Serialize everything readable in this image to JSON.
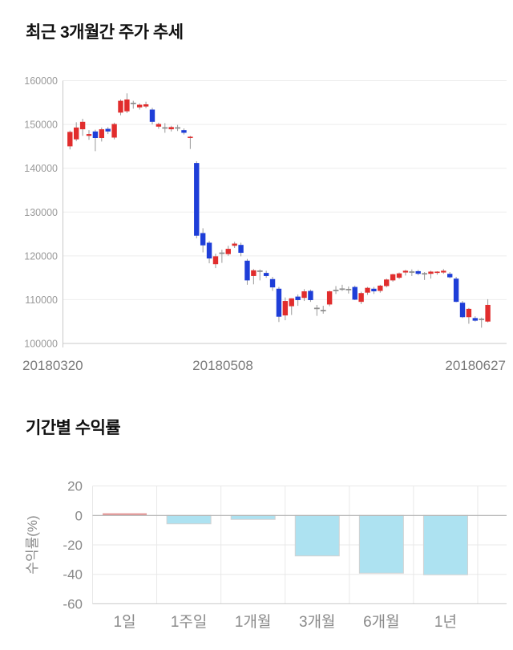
{
  "page": {
    "background": "#ffffff"
  },
  "sections": {
    "price_trend": {
      "title": "최근 3개월간 주가 추세"
    },
    "period_returns": {
      "title": "기간별 수익률"
    }
  },
  "chart_data": [
    {
      "type": "candlestick",
      "title": "최근 3개월간 주가 추세",
      "ylim": [
        100000,
        160000
      ],
      "y_ticks": [
        160000,
        150000,
        140000,
        130000,
        120000,
        110000,
        100000
      ],
      "x_tick_labels": [
        "20180320",
        "20180508",
        "20180627"
      ],
      "grid": "horizontal",
      "up_color": "#e12d2d",
      "down_color": "#1e3ed8",
      "wick_color": "#999999",
      "doji_color": "#8f8f8f",
      "candles": [
        [
          145000,
          148600,
          144300,
          148300
        ],
        [
          146600,
          150500,
          146200,
          149300
        ],
        [
          148900,
          151300,
          147400,
          150600
        ],
        [
          147400,
          148700,
          146500,
          147800
        ],
        [
          148400,
          148800,
          143900,
          146900
        ],
        [
          146900,
          149300,
          146100,
          148900
        ],
        [
          149000,
          149400,
          147800,
          148400
        ],
        [
          147000,
          150400,
          146600,
          150100
        ],
        [
          152700,
          155700,
          152100,
          155400
        ],
        [
          153000,
          157100,
          152600,
          155700
        ],
        [
          154800,
          155400,
          153600,
          154800
        ],
        [
          153900,
          154800,
          153400,
          154500
        ],
        [
          154100,
          155200,
          153700,
          154600
        ],
        [
          153400,
          153800,
          150000,
          150600
        ],
        [
          149500,
          150400,
          149000,
          150100
        ],
        [
          149200,
          150300,
          148100,
          149200
        ],
        [
          148900,
          149700,
          148400,
          149400
        ],
        [
          149200,
          149900,
          148500,
          149200
        ],
        [
          148700,
          149100,
          147700,
          148100
        ],
        [
          146900,
          147400,
          144400,
          147200
        ],
        [
          141200,
          141600,
          124000,
          124600
        ],
        [
          125200,
          126300,
          120800,
          122400
        ],
        [
          123000,
          123400,
          118300,
          119400
        ],
        [
          118100,
          120500,
          117200,
          119900
        ],
        [
          120600,
          121400,
          118400,
          120600
        ],
        [
          120400,
          122300,
          120000,
          121600
        ],
        [
          122300,
          123200,
          121800,
          122800
        ],
        [
          122500,
          123000,
          119900,
          120700
        ],
        [
          118900,
          119300,
          113400,
          114400
        ],
        [
          115400,
          117000,
          113500,
          116700
        ],
        [
          116500,
          116900,
          114400,
          116500
        ],
        [
          116100,
          116600,
          115000,
          115400
        ],
        [
          114700,
          115200,
          112000,
          112800
        ],
        [
          112500,
          112900,
          104900,
          106100
        ],
        [
          106400,
          110500,
          105300,
          109700
        ],
        [
          108500,
          110300,
          106500,
          110300
        ],
        [
          110700,
          111200,
          108600,
          109900
        ],
        [
          110400,
          112400,
          109700,
          111900
        ],
        [
          112000,
          112300,
          109500,
          109900
        ],
        [
          108000,
          108800,
          106300,
          108000
        ],
        [
          107500,
          108600,
          106800,
          107500
        ],
        [
          108900,
          112100,
          108500,
          111900
        ],
        [
          112100,
          113100,
          111300,
          112100
        ],
        [
          112400,
          113400,
          112000,
          112400
        ],
        [
          112300,
          113000,
          111400,
          112300
        ],
        [
          112900,
          113200,
          109900,
          110000
        ],
        [
          109500,
          111800,
          109000,
          111500
        ],
        [
          111600,
          112900,
          111100,
          112700
        ],
        [
          112500,
          112900,
          111300,
          111900
        ],
        [
          112000,
          113400,
          111600,
          113200
        ],
        [
          113100,
          114800,
          112800,
          114600
        ],
        [
          114400,
          115900,
          114100,
          115800
        ],
        [
          115000,
          116200,
          114700,
          116000
        ],
        [
          116200,
          116800,
          115500,
          116600
        ],
        [
          116300,
          116900,
          115400,
          116300
        ],
        [
          116500,
          116800,
          115600,
          115900
        ],
        [
          115900,
          116300,
          114500,
          115900
        ],
        [
          115900,
          116600,
          114800,
          116400
        ],
        [
          116100,
          116500,
          115700,
          116400
        ],
        [
          116200,
          117000,
          115900,
          116600
        ],
        [
          115900,
          116300,
          114900,
          115100
        ],
        [
          114800,
          115200,
          109400,
          109500
        ],
        [
          109300,
          109700,
          105800,
          106000
        ],
        [
          106000,
          108100,
          104500,
          107900
        ],
        [
          105800,
          106200,
          105000,
          105200
        ],
        [
          105500,
          105900,
          103600,
          105500
        ],
        [
          105000,
          110100,
          104800,
          108800
        ]
      ]
    },
    {
      "type": "bar",
      "title": "기간별 수익률",
      "ylabel": "수익률(%)",
      "categories": [
        "1일",
        "1주일",
        "1개월",
        "3개월",
        "6개월",
        "1년"
      ],
      "values": [
        0.1,
        -5.7,
        -2.7,
        -27.5,
        -39.2,
        -40.3
      ],
      "ylim": [
        -60,
        20
      ],
      "y_ticks": [
        20,
        0,
        -20,
        -40,
        -60
      ],
      "grid": "both",
      "legend": "none",
      "bar_color": "#ade2f1",
      "bar_border_color": "#d2d2d2",
      "zero_bar_color": "#e08585"
    }
  ]
}
